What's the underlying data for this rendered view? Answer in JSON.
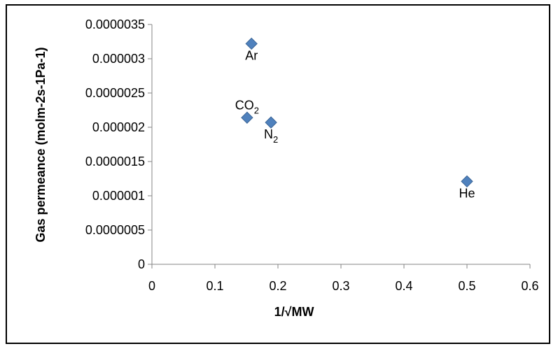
{
  "chart_data": {
    "type": "scatter",
    "title": "",
    "xlabel": "1/√MW",
    "ylabel": "Gas permeance (molm-2s-1Pa-1)",
    "xlim": [
      0,
      0.6
    ],
    "ylim": [
      0,
      3.5e-06
    ],
    "x_ticks": [
      0,
      0.1,
      0.2,
      0.3,
      0.4,
      0.5,
      0.6
    ],
    "x_tick_labels": [
      "0",
      "0.1",
      "0.2",
      "0.3",
      "0.4",
      "0.5",
      "0.6"
    ],
    "y_ticks": [
      0,
      5e-07,
      1e-06,
      1.5e-06,
      2e-06,
      2.5e-06,
      3e-06,
      3.5e-06
    ],
    "y_tick_labels": [
      "0",
      "0.0000005",
      "0.000001",
      "0.0000015",
      "0.000002",
      "0.0000025",
      "0.000003",
      "0.0000035"
    ],
    "grid": false,
    "legend": "none",
    "marker": "diamond",
    "marker_color": "#4f81bd",
    "marker_edge_color": "#3b6596",
    "points": [
      {
        "name": "Ar",
        "label_main": "Ar",
        "label_sub": "",
        "label_position": "below",
        "x": 0.158,
        "y": 3.22e-06
      },
      {
        "name": "CO2",
        "label_main": "CO",
        "label_sub": "2",
        "label_position": "above",
        "x": 0.151,
        "y": 2.14e-06
      },
      {
        "name": "N2",
        "label_main": "N",
        "label_sub": "2",
        "label_position": "below",
        "x": 0.189,
        "y": 2.07e-06
      },
      {
        "name": "He",
        "label_main": "He",
        "label_sub": "",
        "label_position": "below",
        "x": 0.5,
        "y": 1.21e-06
      }
    ]
  }
}
